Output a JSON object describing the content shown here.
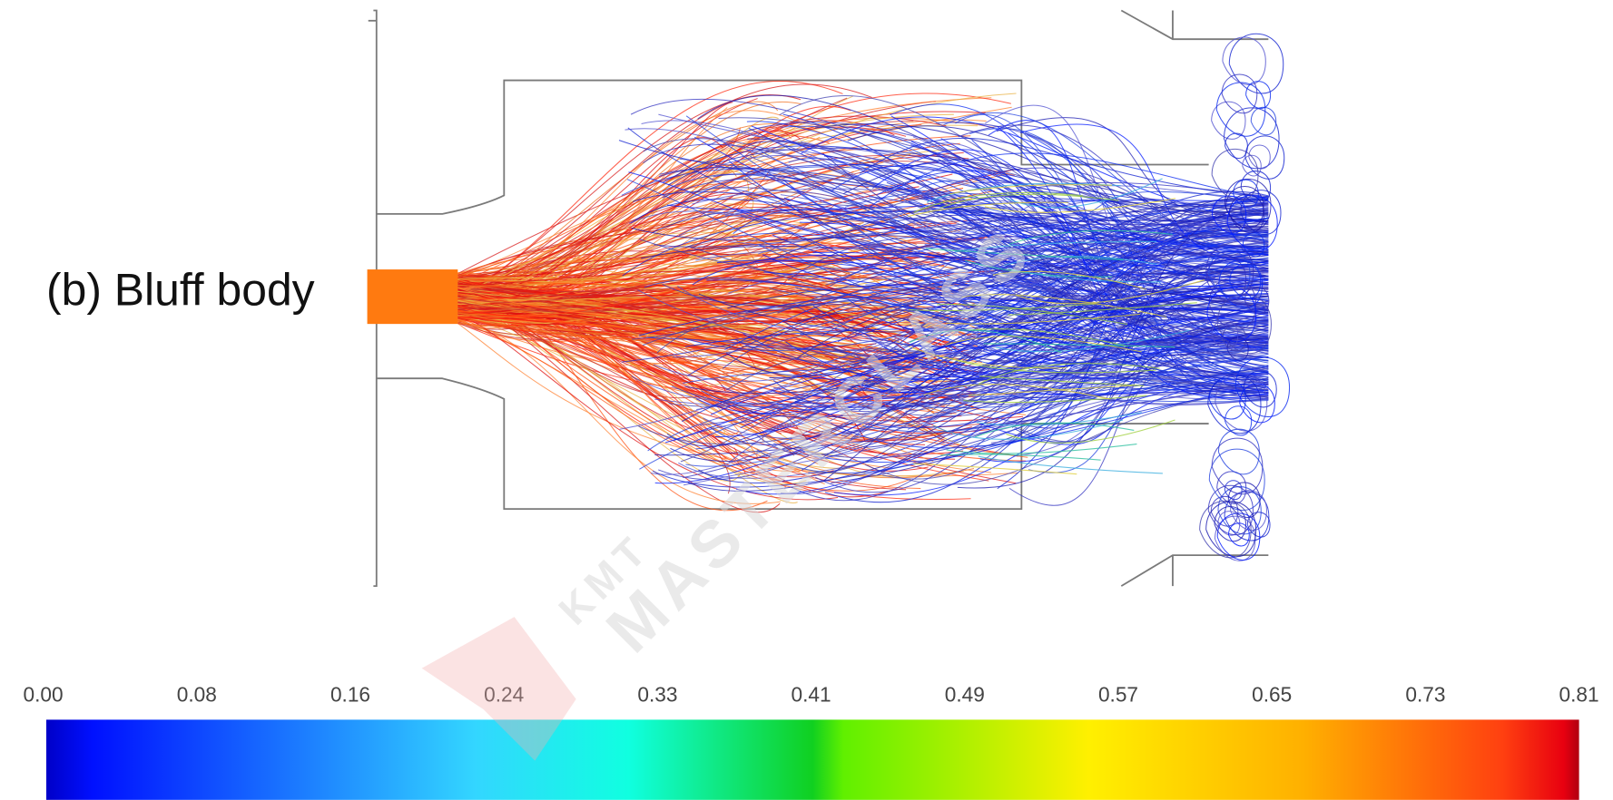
{
  "figure": {
    "label": "(b) Bluff body"
  },
  "colorbar": {
    "ticks": [
      "0.00",
      "0.08",
      "0.16",
      "0.24",
      "0.33",
      "0.41",
      "0.49",
      "0.57",
      "0.65",
      "0.73",
      "0.81"
    ]
  },
  "watermark": {
    "brand": "KMT",
    "name": "MASTERCLASS"
  }
}
